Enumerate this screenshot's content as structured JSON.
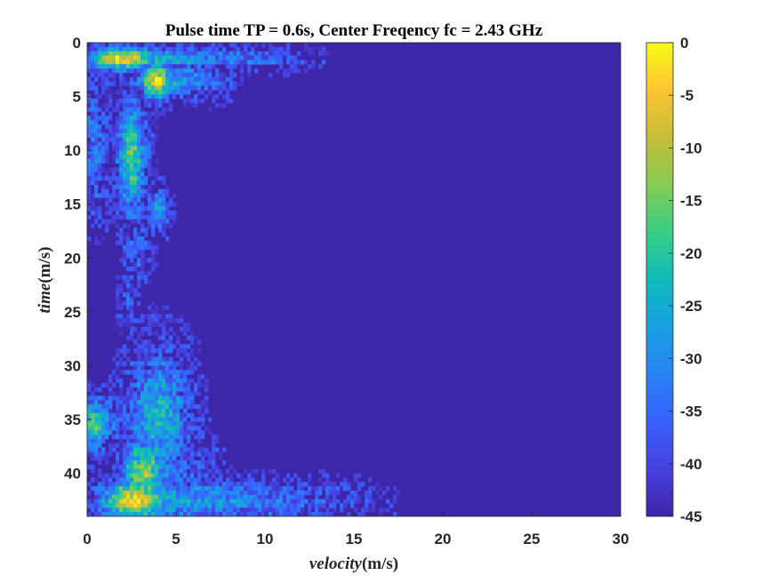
{
  "chart_data": {
    "type": "heatmap",
    "title": "Pulse time TP = 0.6s, Center Freqency fc = 2.43 GHz",
    "xlabel_italic": "velocity",
    "xlabel_unit": "(m/s)",
    "ylabel_italic": "time",
    "ylabel_unit": "(m/s)",
    "xlim": [
      0,
      30
    ],
    "ylim": [
      0,
      44
    ],
    "y_reversed": true,
    "xticks": [
      0,
      5,
      10,
      15,
      20,
      25,
      30
    ],
    "yticks": [
      0,
      5,
      10,
      15,
      20,
      25,
      30,
      35,
      40
    ],
    "colorbar": {
      "range": [
        -45,
        0
      ],
      "ticks": [
        0,
        -5,
        -10,
        -15,
        -20,
        -25,
        -30,
        -35,
        -40,
        -45
      ],
      "colormap": "parula"
    },
    "background_value": -45,
    "cell_width": 0.2,
    "cell_height": 0.4,
    "features": [
      {
        "v_center": 2.0,
        "v_spread": 1.3,
        "t": 1.5,
        "t_spread": 0.7,
        "peak": -4,
        "extent": 14
      },
      {
        "v_center": 3.9,
        "v_spread": 0.6,
        "t": 3.5,
        "t_spread": 1.2,
        "peak": -6,
        "extent": 9
      },
      {
        "v_center": 2.5,
        "v_spread": 0.5,
        "t": 10.5,
        "t_spread": 3.5,
        "peak": -17,
        "extent": 4
      },
      {
        "v_center": 0.4,
        "v_spread": 0.6,
        "t": 9,
        "t_spread": 4,
        "peak": -34,
        "extent": 2
      },
      {
        "v_center": 4.0,
        "v_spread": 0.4,
        "t": 15.5,
        "t_spread": 1.2,
        "peak": -28,
        "extent": 5
      },
      {
        "v_center": 2.8,
        "v_spread": 0.5,
        "t": 19.5,
        "t_spread": 1.5,
        "peak": -36,
        "extent": 4
      },
      {
        "v_center": 2.3,
        "v_spread": 0.3,
        "t": 24,
        "t_spread": 1.8,
        "peak": -37,
        "extent": 3
      },
      {
        "v_center": 4.0,
        "v_spread": 1.1,
        "t": 35,
        "t_spread": 4,
        "peak": -25,
        "extent": 7
      },
      {
        "v_center": 0.4,
        "v_spread": 0.6,
        "t": 35.5,
        "t_spread": 1.5,
        "peak": -20,
        "extent": 3
      },
      {
        "v_center": 3.2,
        "v_spread": 0.8,
        "t": 40,
        "t_spread": 2,
        "peak": -12,
        "extent": 8
      },
      {
        "v_center": 2.7,
        "v_spread": 1.3,
        "t": 42.5,
        "t_spread": 1.2,
        "peak": -5,
        "extent": 18
      }
    ]
  }
}
